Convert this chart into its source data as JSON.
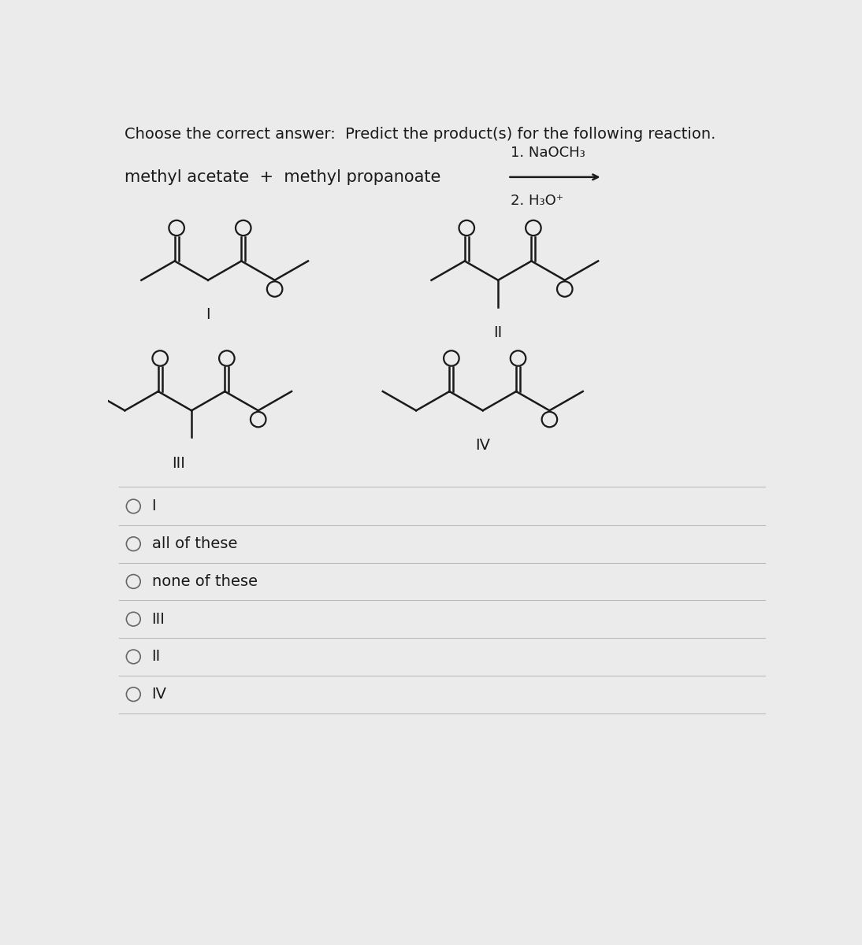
{
  "title": "Choose the correct answer:  Predict the product(s) for the following reaction.",
  "reaction_text": "methyl acetate  +  methyl propanoate",
  "reagent1": "1. NaOCH₃",
  "reagent2": "2. H₃O⁺",
  "choice_labels": [
    "I",
    "all of these",
    "none of these",
    "III",
    "II",
    "IV"
  ],
  "bg_color": "#ebebeb",
  "text_color": "#1a1a1a",
  "line_color": "#1a1a1a",
  "struct_label_fontsize": 14,
  "choice_fontsize": 14,
  "title_fontsize": 14
}
